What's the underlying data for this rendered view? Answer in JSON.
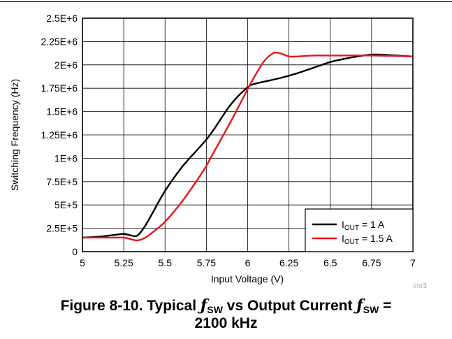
{
  "chart_data": {
    "type": "line",
    "xlabel": "Input Voltage (V)",
    "ylabel": "Switching Frequency (Hz)",
    "xlim": [
      5,
      7
    ],
    "ylim": [
      0,
      2500000
    ],
    "x_ticks": [
      5,
      5.25,
      5.5,
      5.75,
      6,
      6.25,
      6.5,
      6.75,
      7
    ],
    "x_tick_labels": [
      "5",
      "5.25",
      "5.5",
      "5.75",
      "6",
      "6.25",
      "6.5",
      "6.75",
      "7"
    ],
    "y_ticks": [
      0,
      250000,
      500000,
      750000,
      1000000,
      1250000,
      1500000,
      1750000,
      2000000,
      2250000,
      2500000
    ],
    "y_tick_labels": [
      "0",
      "2.5E+5",
      "5E+5",
      "7.5E+5",
      "1E+6",
      "1.25E+6",
      "1.5E+6",
      "1.75E+6",
      "2E+6",
      "2.25E+6",
      "2.5E+6"
    ],
    "grid": true,
    "legend_position": "bottom-right",
    "series": [
      {
        "name": "I_OUT = 1 A",
        "legend_main": "I",
        "legend_sub": "OUT",
        "legend_rest": " = 1 A",
        "color": "#000000",
        "x": [
          5.0,
          5.1,
          5.2,
          5.25,
          5.29,
          5.33,
          5.37,
          5.42,
          5.5,
          5.6,
          5.7,
          5.75,
          5.8,
          5.9,
          6.0,
          6.05,
          6.1,
          6.2,
          6.3,
          6.4,
          6.5,
          6.6,
          6.7,
          6.75,
          6.8,
          6.9,
          7.0
        ],
        "y": [
          150000,
          160000,
          180000,
          190000,
          175000,
          170000,
          250000,
          400000,
          650000,
          900000,
          1100000,
          1200000,
          1320000,
          1580000,
          1760000,
          1800000,
          1820000,
          1860000,
          1910000,
          1970000,
          2030000,
          2070000,
          2100000,
          2110000,
          2110000,
          2100000,
          2090000
        ]
      },
      {
        "name": "I_OUT = 1.5 A",
        "legend_main": "I",
        "legend_sub": "OUT",
        "legend_rest": " = 1.5 A",
        "color": "#e8141c",
        "x": [
          5.0,
          5.1,
          5.2,
          5.25,
          5.3,
          5.33,
          5.37,
          5.42,
          5.5,
          5.6,
          5.7,
          5.75,
          5.8,
          5.9,
          6.0,
          6.05,
          6.1,
          6.15,
          6.18,
          6.22,
          6.25,
          6.3,
          6.4,
          6.5,
          6.75,
          7.0
        ],
        "y": [
          150000,
          150000,
          150000,
          150000,
          130000,
          120000,
          140000,
          200000,
          320000,
          530000,
          780000,
          920000,
          1080000,
          1400000,
          1740000,
          1900000,
          2040000,
          2120000,
          2130000,
          2110000,
          2090000,
          2090000,
          2100000,
          2100000,
          2100000,
          2090000
        ]
      }
    ]
  },
  "watermark": "lmr3",
  "caption": {
    "line1_prefix": "Figure 8-10. Typical ",
    "fsw_symbol": "ƒ",
    "fsw_sub": "SW",
    "line1_middle": " vs Output Current ",
    "line1_suffix": " =",
    "line2": "2100 kHz"
  }
}
